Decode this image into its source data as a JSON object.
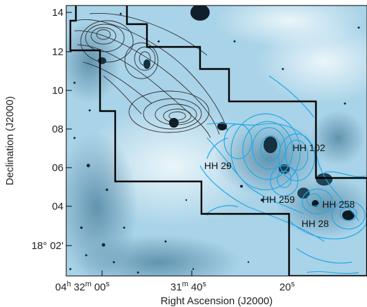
{
  "axes": {
    "ylabel": "Declination (J2000)",
    "xlabel": "Right Ascension (J2000)",
    "y_ticks": [
      "14",
      "12",
      "10",
      "08",
      "06",
      "04",
      "18° 02'"
    ],
    "x_ticks": [
      {
        "d": "04",
        "du": "h",
        "m": "32",
        "mu": "m",
        "s": "00",
        "su": "s"
      },
      {
        "m": "31",
        "mu": "m",
        "s": "40",
        "su": "s"
      },
      {
        "s": "20",
        "su": "s"
      }
    ]
  },
  "annotations": [
    "HH 102",
    "HH 29",
    "HH 259",
    "HH 258",
    "HH 28"
  ],
  "colors": {
    "sky_background": "#a9d3e8",
    "contour_cyan": "#23a8e6",
    "contour_black": "#2e2e2e",
    "footprint": "#000000"
  }
}
